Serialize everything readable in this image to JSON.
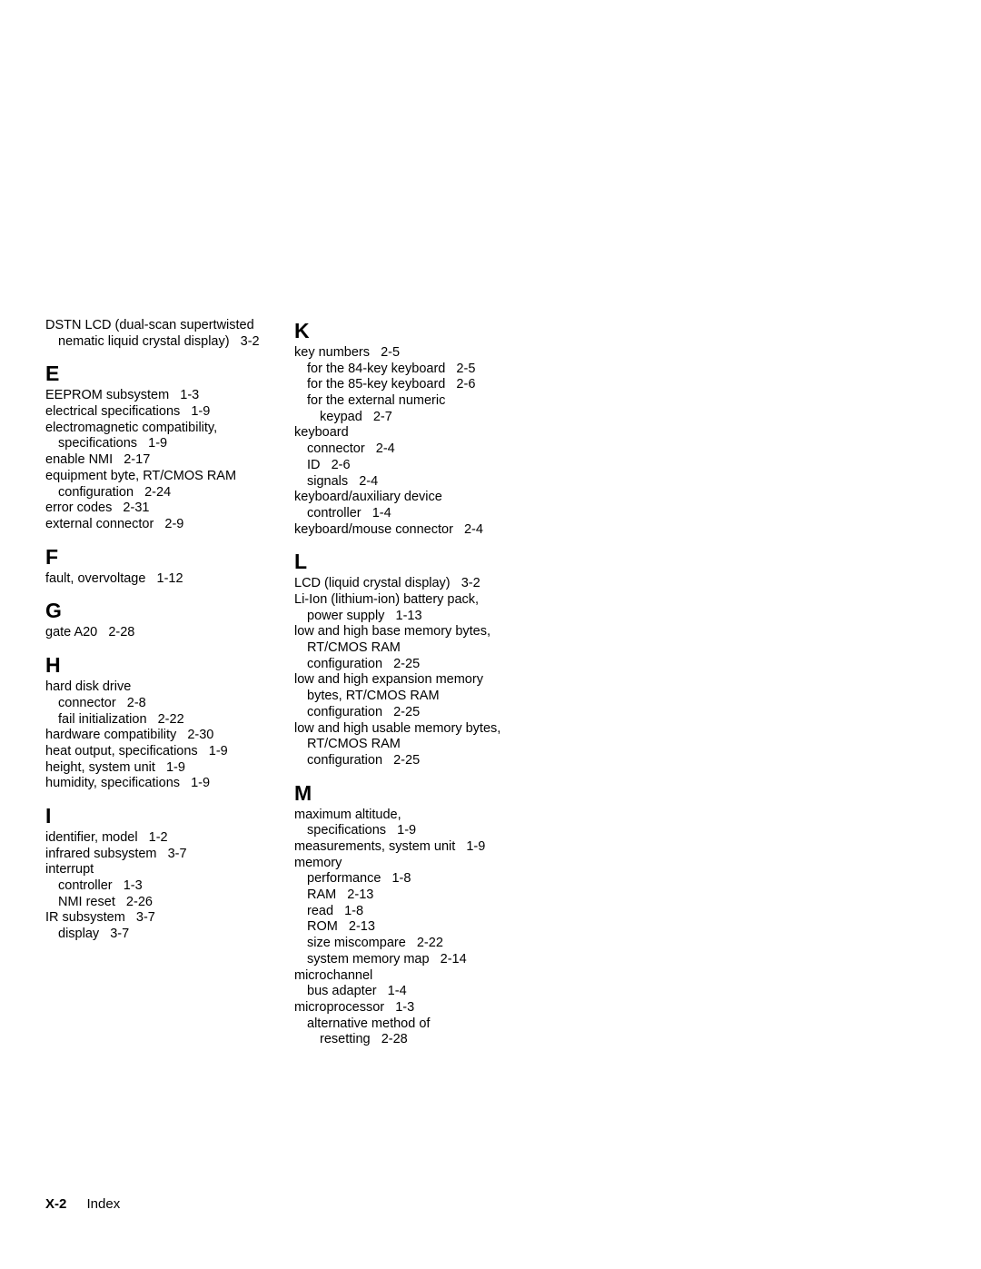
{
  "left_column": {
    "pre_entries": [
      {
        "text": "DSTN LCD (dual-scan supertwisted",
        "indent": 0
      },
      {
        "text": "nematic liquid crystal display)",
        "ref": "3-2",
        "indent": 1
      }
    ],
    "sections": [
      {
        "letter": "E",
        "entries": [
          {
            "text": "EEPROM subsystem",
            "ref": "1-3",
            "indent": 0
          },
          {
            "text": "electrical specifications",
            "ref": "1-9",
            "indent": 0
          },
          {
            "text": "electromagnetic compatibility,",
            "indent": 0
          },
          {
            "text": "specifications",
            "ref": "1-9",
            "indent": 1
          },
          {
            "text": "enable NMI",
            "ref": "2-17",
            "indent": 0
          },
          {
            "text": "equipment byte, RT/CMOS RAM",
            "indent": 0
          },
          {
            "text": "configuration",
            "ref": "2-24",
            "indent": 1
          },
          {
            "text": "error codes",
            "ref": "2-31",
            "indent": 0
          },
          {
            "text": "external connector",
            "ref": "2-9",
            "indent": 0
          }
        ]
      },
      {
        "letter": "F",
        "entries": [
          {
            "text": "fault, overvoltage",
            "ref": "1-12",
            "indent": 0
          }
        ]
      },
      {
        "letter": "G",
        "entries": [
          {
            "text": "gate A20",
            "ref": "2-28",
            "indent": 0
          }
        ]
      },
      {
        "letter": "H",
        "entries": [
          {
            "text": "hard disk drive",
            "indent": 0
          },
          {
            "text": "connector",
            "ref": "2-8",
            "indent": 1
          },
          {
            "text": "fail initialization",
            "ref": "2-22",
            "indent": 1
          },
          {
            "text": "hardware compatibility",
            "ref": "2-30",
            "indent": 0
          },
          {
            "text": "heat output, specifications",
            "ref": "1-9",
            "indent": 0
          },
          {
            "text": "height, system unit",
            "ref": "1-9",
            "indent": 0
          },
          {
            "text": "humidity, specifications",
            "ref": "1-9",
            "indent": 0
          }
        ]
      },
      {
        "letter": "I",
        "entries": [
          {
            "text": "identifier, model",
            "ref": "1-2",
            "indent": 0
          },
          {
            "text": "infrared subsystem",
            "ref": "3-7",
            "indent": 0
          },
          {
            "text": "interrupt",
            "indent": 0
          },
          {
            "text": "controller",
            "ref": "1-3",
            "indent": 1
          },
          {
            "text": "NMI reset",
            "ref": "2-26",
            "indent": 1
          },
          {
            "text": "IR subsystem",
            "ref": "3-7",
            "indent": 0
          },
          {
            "text": "display",
            "ref": "3-7",
            "indent": 1
          }
        ]
      }
    ]
  },
  "right_column": {
    "sections": [
      {
        "letter": "K",
        "entries": [
          {
            "text": "key numbers",
            "ref": "2-5",
            "indent": 0
          },
          {
            "text": "for the 84-key keyboard",
            "ref": "2-5",
            "indent": 1
          },
          {
            "text": "for the 85-key keyboard",
            "ref": "2-6",
            "indent": 1
          },
          {
            "text": "for the external numeric",
            "indent": 1
          },
          {
            "text": "keypad",
            "ref": "2-7",
            "indent": 2
          },
          {
            "text": "keyboard",
            "indent": 0
          },
          {
            "text": "connector",
            "ref": "2-4",
            "indent": 1
          },
          {
            "text": "ID",
            "ref": "2-6",
            "indent": 1
          },
          {
            "text": "signals",
            "ref": "2-4",
            "indent": 1
          },
          {
            "text": "keyboard/auxiliary device",
            "indent": 0
          },
          {
            "text": "controller",
            "ref": "1-4",
            "indent": 1
          },
          {
            "text": "keyboard/mouse connector",
            "ref": "2-4",
            "indent": 0
          }
        ]
      },
      {
        "letter": "L",
        "entries": [
          {
            "text": "LCD (liquid crystal display)",
            "ref": "3-2",
            "indent": 0
          },
          {
            "text": "Li-Ion (lithium-ion) battery pack,",
            "indent": 0
          },
          {
            "text": "power supply",
            "ref": "1-13",
            "indent": 1
          },
          {
            "text": "low and high base memory bytes,",
            "indent": 0
          },
          {
            "text": "RT/CMOS RAM",
            "indent": 1
          },
          {
            "text": "configuration",
            "ref": "2-25",
            "indent": 1
          },
          {
            "text": "low and high expansion memory",
            "indent": 0
          },
          {
            "text": "bytes, RT/CMOS RAM",
            "indent": 1
          },
          {
            "text": "configuration",
            "ref": "2-25",
            "indent": 1
          },
          {
            "text": "low and high usable memory bytes,",
            "indent": 0
          },
          {
            "text": "RT/CMOS RAM",
            "indent": 1
          },
          {
            "text": "configuration",
            "ref": "2-25",
            "indent": 1
          }
        ]
      },
      {
        "letter": "M",
        "entries": [
          {
            "text": "maximum altitude,",
            "indent": 0
          },
          {
            "text": "specifications",
            "ref": "1-9",
            "indent": 1
          },
          {
            "text": "measurements, system unit",
            "ref": "1-9",
            "indent": 0
          },
          {
            "text": "memory",
            "indent": 0
          },
          {
            "text": "performance",
            "ref": "1-8",
            "indent": 1
          },
          {
            "text": "RAM",
            "ref": "2-13",
            "indent": 1
          },
          {
            "text": "read",
            "ref": "1-8",
            "indent": 1
          },
          {
            "text": "ROM",
            "ref": "2-13",
            "indent": 1
          },
          {
            "text": "size miscompare",
            "ref": "2-22",
            "indent": 1
          },
          {
            "text": "system memory map",
            "ref": "2-14",
            "indent": 1
          },
          {
            "text": "microchannel",
            "indent": 0
          },
          {
            "text": "bus adapter",
            "ref": "1-4",
            "indent": 1
          },
          {
            "text": "microprocessor",
            "ref": "1-3",
            "indent": 0
          },
          {
            "text": "alternative method of",
            "indent": 1
          },
          {
            "text": "resetting",
            "ref": "2-28",
            "indent": 2
          }
        ]
      }
    ]
  },
  "footer": {
    "page_number": "X-2",
    "label": "Index"
  }
}
